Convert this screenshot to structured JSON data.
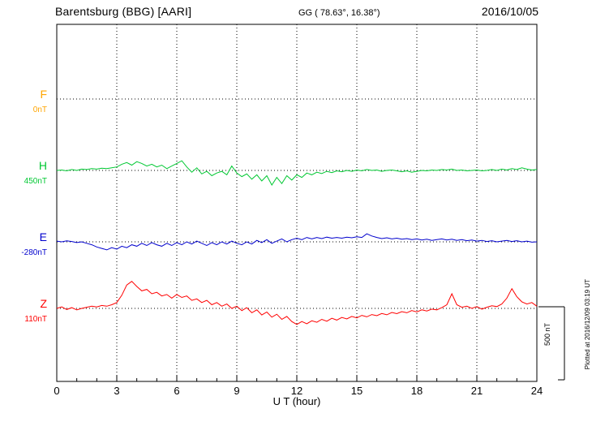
{
  "header": {
    "station": "Barentsburg (BBG)  [AARI]",
    "coords": "GG ( 78.63°,  16.38°)",
    "date": "2016/10/05"
  },
  "side": {
    "plotted_at": "Plotted at 2016/12/09 03:19 UT",
    "scale_label": "500 nT"
  },
  "axis": {
    "xlabel": "U T (hour)",
    "ticks": [
      0,
      3,
      6,
      9,
      12,
      15,
      18,
      21,
      24
    ]
  },
  "components": [
    {
      "label": "F",
      "baseline_label": "0nT",
      "color": "#ffa500"
    },
    {
      "label": "H",
      "baseline_label": "450nT",
      "color": "#00c832"
    },
    {
      "label": "E",
      "baseline_label": "-280nT",
      "color": "#0000cd"
    },
    {
      "label": "Z",
      "baseline_label": "110nT",
      "color": "#ff0000"
    }
  ],
  "chart_data": {
    "type": "line",
    "title": "Barentsburg (BBG) [AARI] magnetogram 2016/10/05",
    "xlabel": "U T (hour)",
    "ylabel": "nT",
    "x_range": [
      0,
      24
    ],
    "x_step_hours": 0.25,
    "scale_bar_nT": 500,
    "grid": "dotted",
    "series": [
      {
        "name": "F",
        "color": "#ffa500",
        "baseline": 0,
        "values": []
      },
      {
        "name": "H",
        "color": "#00c832",
        "baseline": 450,
        "values": [
          450,
          453,
          447,
          456,
          450,
          459,
          456,
          462,
          459,
          465,
          462,
          468,
          474,
          492,
          504,
          486,
          510,
          498,
          480,
          492,
          474,
          486,
          462,
          480,
          498,
          516,
          474,
          438,
          468,
          426,
          444,
          414,
          432,
          444,
          420,
          480,
          432,
          408,
          426,
          390,
          420,
          378,
          414,
          350,
          402,
          360,
          414,
          384,
          420,
          402,
          432,
          420,
          438,
          429,
          444,
          435,
          447,
          441,
          450,
          444,
          453,
          447,
          456,
          450,
          453,
          444,
          450,
          453,
          447,
          441,
          447,
          438,
          444,
          450,
          447,
          453,
          450,
          456,
          453,
          459,
          450,
          453,
          447,
          450,
          453,
          447,
          450,
          456,
          450,
          459,
          453,
          462,
          456,
          468,
          459,
          453,
          456
        ]
      },
      {
        "name": "E",
        "color": "#0000cd",
        "baseline": -280,
        "values": [
          -275,
          -280,
          -273,
          -278,
          -285,
          -280,
          -290,
          -300,
          -315,
          -325,
          -335,
          -320,
          -330,
          -310,
          -320,
          -300,
          -310,
          -290,
          -305,
          -285,
          -300,
          -310,
          -290,
          -305,
          -285,
          -300,
          -280,
          -295,
          -275,
          -290,
          -305,
          -285,
          -300,
          -280,
          -295,
          -275,
          -290,
          -300,
          -280,
          -295,
          -270,
          -285,
          -265,
          -290,
          -275,
          -260,
          -280,
          -265,
          -255,
          -265,
          -250,
          -260,
          -250,
          -258,
          -248,
          -255,
          -250,
          -255,
          -248,
          -252,
          -245,
          -250,
          -225,
          -240,
          -250,
          -258,
          -252,
          -260,
          -255,
          -262,
          -258,
          -265,
          -260,
          -268,
          -262,
          -270,
          -265,
          -260,
          -268,
          -262,
          -270,
          -265,
          -272,
          -268,
          -275,
          -270,
          -278,
          -272,
          -280,
          -275,
          -270,
          -278,
          -272,
          -280,
          -275,
          -282,
          -280
        ]
      },
      {
        "name": "Z",
        "color": "#ff0000",
        "baseline": 110,
        "values": [
          110,
          120,
          102,
          115,
          100,
          110,
          118,
          125,
          120,
          130,
          125,
          135,
          150,
          200,
          270,
          295,
          260,
          230,
          240,
          210,
          220,
          195,
          205,
          180,
          205,
          185,
          195,
          165,
          175,
          150,
          165,
          135,
          150,
          125,
          140,
          110,
          125,
          95,
          115,
          80,
          100,
          65,
          85,
          50,
          70,
          35,
          55,
          20,
          0,
          20,
          5,
          25,
          15,
          35,
          22,
          42,
          30,
          48,
          38,
          55,
          45,
          62,
          52,
          68,
          60,
          75,
          66,
          82,
          74,
          88,
          80,
          95,
          86,
          100,
          92,
          105,
          100,
          115,
          135,
          210,
          135,
          118,
          125,
          110,
          122,
          105,
          118,
          128,
          122,
          140,
          180,
          245,
          190,
          155,
          140,
          150,
          125
        ]
      }
    ]
  }
}
